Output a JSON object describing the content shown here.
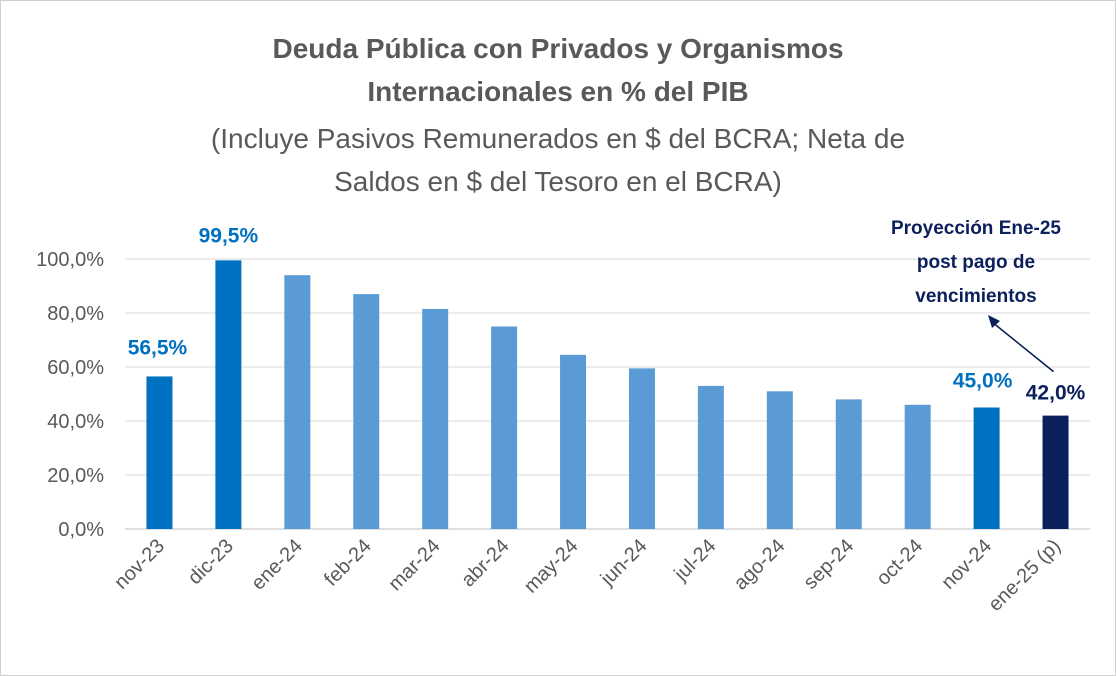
{
  "chart_data": {
    "type": "bar",
    "title": [
      "Deuda Pública con Privados y Organismos",
      "Internacionales en % del PIB"
    ],
    "subtitle": [
      "(Incluye Pasivos Remunerados en $ del BCRA; Neta de",
      "Saldos en $ del Tesoro en el BCRA)"
    ],
    "categories": [
      "nov-23",
      "dic-23",
      "ene-24",
      "feb-24",
      "mar-24",
      "abr-24",
      "may-24",
      "jun-24",
      "jul-24",
      "ago-24",
      "sep-24",
      "oct-24",
      "nov-24",
      "ene-25 (p)"
    ],
    "values": [
      56.5,
      99.5,
      94,
      87,
      81.5,
      75,
      64.5,
      59.5,
      53,
      51,
      48,
      46,
      45,
      42
    ],
    "bar_colors": [
      "#0070c0",
      "#0070c0",
      "#5b9bd5",
      "#5b9bd5",
      "#5b9bd5",
      "#5b9bd5",
      "#5b9bd5",
      "#5b9bd5",
      "#5b9bd5",
      "#5b9bd5",
      "#5b9bd5",
      "#5b9bd5",
      "#0070c0",
      "#0b1f5c"
    ],
    "data_labels": [
      {
        "index": 0,
        "text": "56,5%",
        "color": "#0070c0"
      },
      {
        "index": 1,
        "text": "99,5%",
        "color": "#0070c0"
      },
      {
        "index": 12,
        "text": "45,0%",
        "color": "#0070c0"
      },
      {
        "index": 13,
        "text": "42,0%",
        "color": "#0b1f5c"
      }
    ],
    "annotation": {
      "lines": [
        "Proyección Ene-25",
        "post pago de",
        "vencimientos"
      ],
      "color": "#0b1f5c",
      "points_to": 13
    },
    "ylim": [
      0,
      100
    ],
    "yticks": [
      0,
      20,
      40,
      60,
      80,
      100
    ],
    "ytick_labels": [
      "0,0%",
      "20,0%",
      "40,0%",
      "60,0%",
      "80,0%",
      "100,0%"
    ],
    "grid": true,
    "gridline_color": "#d9d9d9",
    "xlabel": "",
    "ylabel": ""
  }
}
